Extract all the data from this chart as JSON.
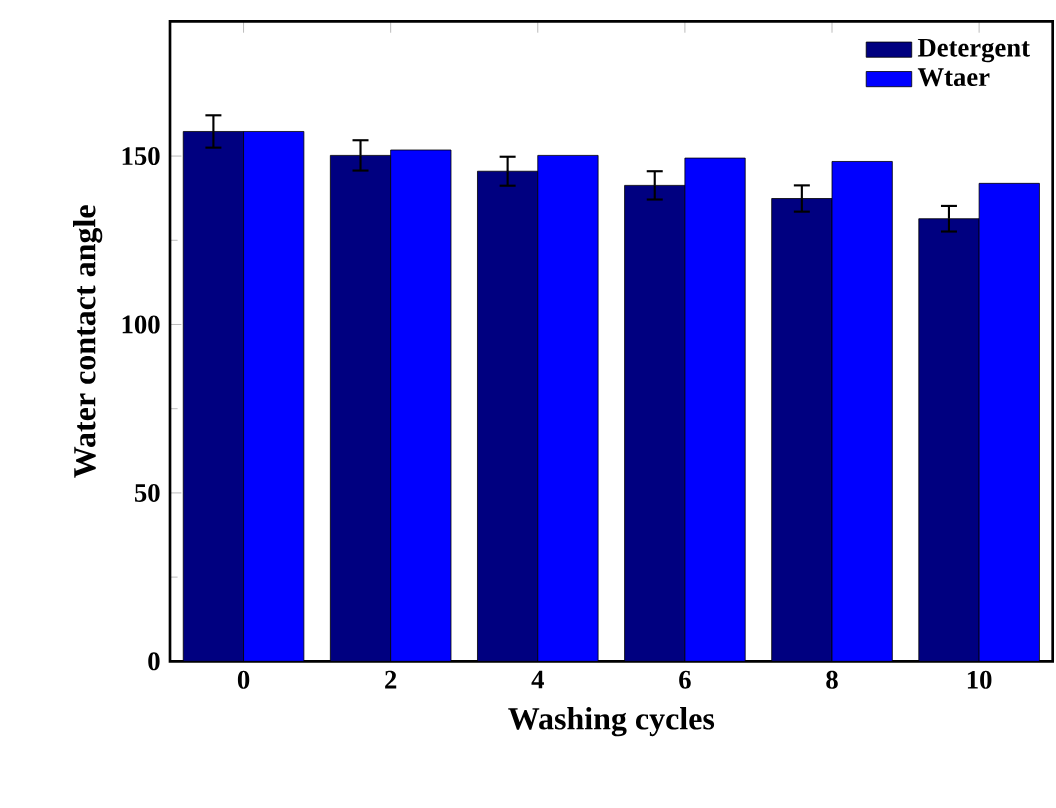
{
  "chart_data": {
    "type": "bar",
    "xlabel": "Washing cycles",
    "ylabel": "Water contact angle",
    "categories": [
      "0",
      "2",
      "4",
      "6",
      "8",
      "10"
    ],
    "series": [
      {
        "name": "Detergent",
        "color": "#000080",
        "values": [
          157.3,
          150.2,
          145.5,
          141.3,
          137.4,
          131.4
        ],
        "errors": [
          4.8,
          4.5,
          4.3,
          4.2,
          3.9,
          3.8
        ]
      },
      {
        "name": "Wtaer",
        "color": "#0000ff",
        "values": [
          157.3,
          151.8,
          150.2,
          149.4,
          148.4,
          141.9
        ]
      }
    ],
    "ylim": [
      0,
      190
    ],
    "yticks": [
      0,
      50,
      100,
      150
    ],
    "legend": "top right"
  }
}
